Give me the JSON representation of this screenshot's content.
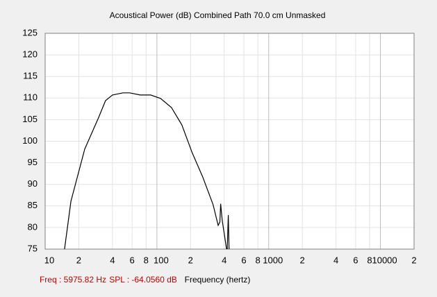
{
  "chart_data": {
    "type": "line",
    "title": "Acoustical Power (dB)   Combined   Path 70.0 cm   Unmasked",
    "x_label": "Frequency (hertz)",
    "cursor_readout": [
      "Freq : 5975.82 Hz",
      "SPL : -64.0560 dB"
    ],
    "log_x": true,
    "grid": true,
    "x": [
      14.9,
      17,
      22.6,
      30,
      34.7,
      40,
      49.7,
      57,
      71,
      88,
      108,
      135,
      167,
      207,
      257,
      318,
      353,
      366,
      372,
      384,
      403,
      420,
      426,
      426,
      435,
      442
    ],
    "series": [
      {
        "color": "#000000",
        "values": [
          75,
          86.1,
          98.2,
          105.4,
          109.4,
          110.7,
          111.2,
          111.2,
          110.7,
          110.7,
          109.9,
          107.8,
          103.8,
          97.3,
          91.7,
          85.3,
          80.5,
          81.3,
          85.5,
          81.6,
          78.1,
          75,
          null,
          75,
          82.9,
          75
        ]
      }
    ],
    "xlim": [
      10,
      20000
    ],
    "xticks": [
      {
        "value": 10,
        "label": "10"
      },
      {
        "value": 20,
        "label": "2"
      },
      {
        "value": 40,
        "label": "4"
      },
      {
        "value": 60,
        "label": "6"
      },
      {
        "value": 80,
        "label": "8"
      },
      {
        "value": 100,
        "label": "100"
      },
      {
        "value": 200,
        "label": "2"
      },
      {
        "value": 400,
        "label": "4"
      },
      {
        "value": 600,
        "label": "6"
      },
      {
        "value": 800,
        "label": "8"
      },
      {
        "value": 1000,
        "label": "1000"
      },
      {
        "value": 2000,
        "label": "2"
      },
      {
        "value": 4000,
        "label": "4"
      },
      {
        "value": 6000,
        "label": "6"
      },
      {
        "value": 8000,
        "label": "8"
      },
      {
        "value": 10000,
        "label": "10000"
      },
      {
        "value": 20000,
        "label": "2"
      }
    ],
    "ylim": [
      75,
      125
    ],
    "yticks": [
      75,
      80,
      85,
      90,
      95,
      100,
      105,
      110,
      115,
      120,
      125
    ]
  }
}
